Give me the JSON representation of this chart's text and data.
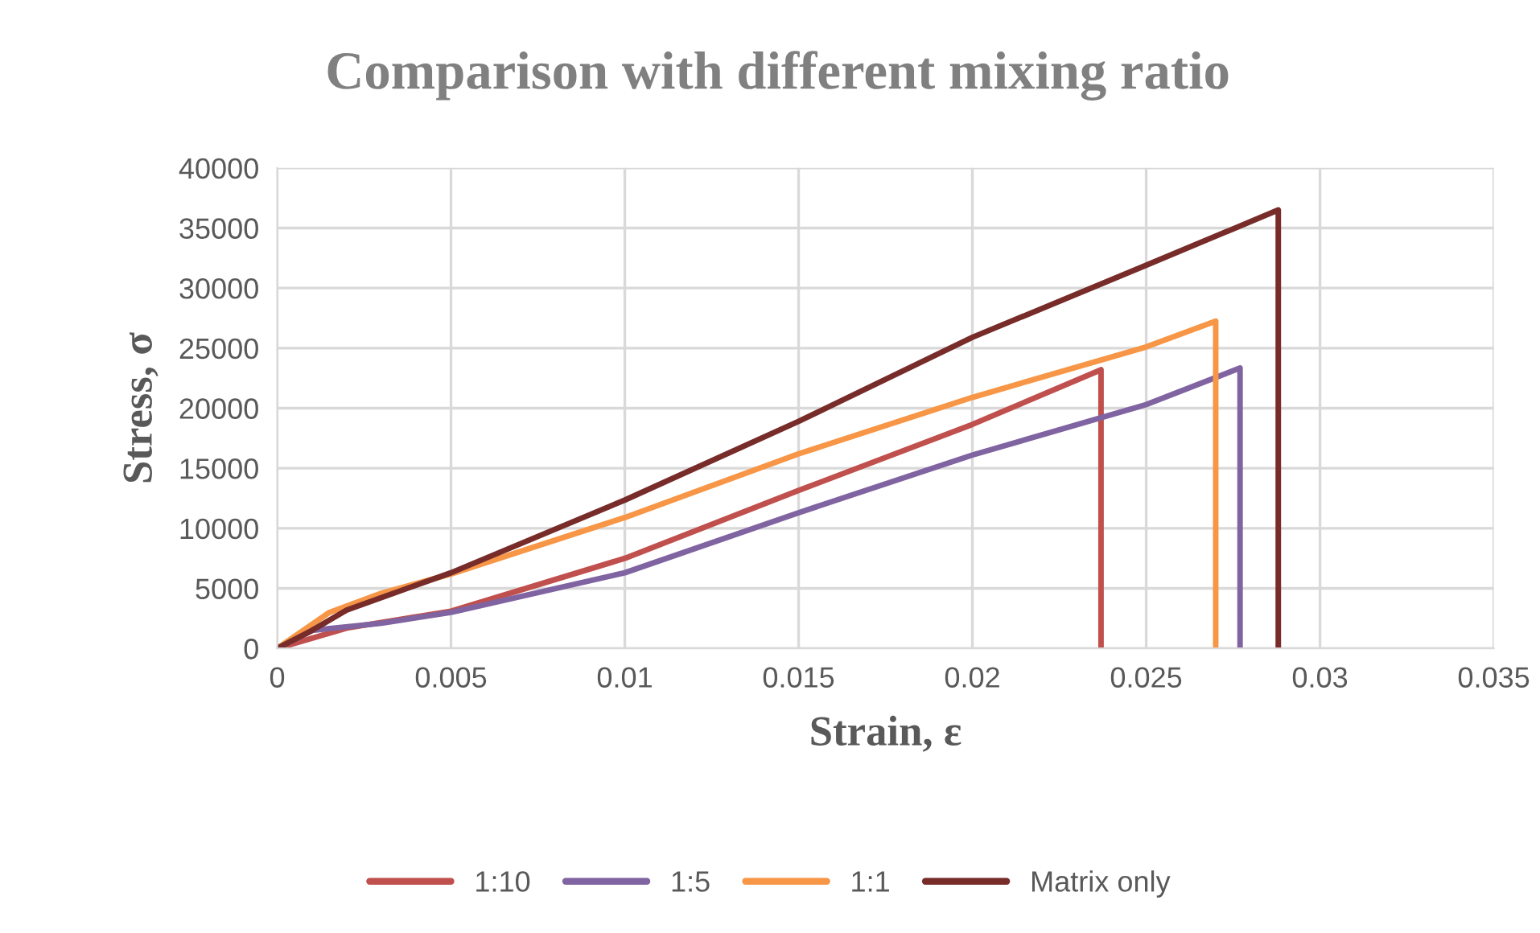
{
  "chart_data": {
    "type": "line",
    "title": "Comparison with different mixing ratio",
    "xlabel": "Strain, ε",
    "ylabel": "Stress, σ",
    "xlim": [
      0,
      0.035
    ],
    "xticks": [
      0,
      0.005,
      0.01,
      0.015,
      0.02,
      0.025,
      0.03,
      0.035
    ],
    "ylim": [
      0,
      40000
    ],
    "yticks": [
      0,
      5000,
      10000,
      15000,
      20000,
      25000,
      30000,
      35000,
      40000
    ],
    "grid": true,
    "legend": "bottom",
    "marker": "none",
    "line_style": "solid",
    "series": [
      {
        "name": "1:10",
        "color": "#c0504d",
        "x": [
          0,
          0.002,
          0.005,
          0.01,
          0.015,
          0.02,
          0.0237,
          0.0237
        ],
        "values": [
          0,
          1700,
          3100,
          7500,
          13150,
          18650,
          23200,
          0
        ]
      },
      {
        "name": "1:5",
        "color": "#8064a2",
        "x": [
          0,
          0.001,
          0.003,
          0.005,
          0.01,
          0.015,
          0.02,
          0.025,
          0.0277,
          0.0277
        ],
        "values": [
          0,
          1500,
          2100,
          3000,
          6300,
          11300,
          16100,
          20300,
          23350,
          0
        ]
      },
      {
        "name": "1:1",
        "color": "#f79646",
        "x": [
          0,
          0.0015,
          0.003,
          0.005,
          0.01,
          0.015,
          0.02,
          0.025,
          0.027,
          0.027
        ],
        "values": [
          0,
          3000,
          4600,
          6200,
          10900,
          16200,
          20900,
          25100,
          27250,
          0
        ]
      },
      {
        "name": "Matrix only",
        "color": "#772c2a",
        "x": [
          0,
          0.001,
          0.002,
          0.005,
          0.01,
          0.015,
          0.02,
          0.025,
          0.0288,
          0.0288
        ],
        "values": [
          0,
          1500,
          3200,
          6300,
          12350,
          18900,
          25900,
          31900,
          36500,
          0
        ]
      }
    ]
  }
}
